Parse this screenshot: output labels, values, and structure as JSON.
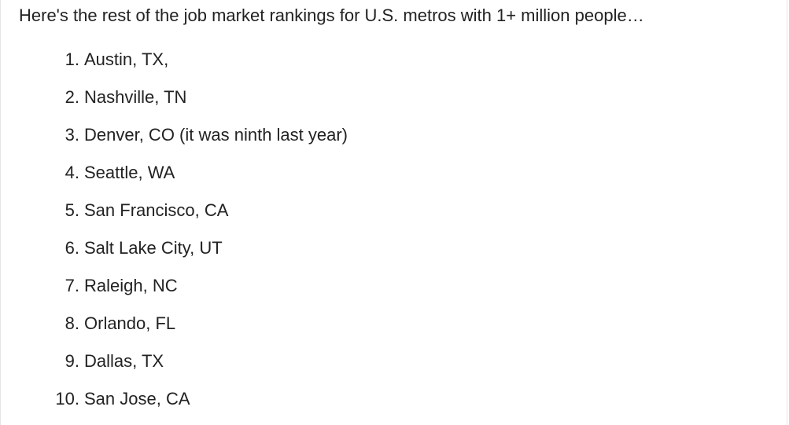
{
  "intro_text": "Here's the rest of the job market rankings for U.S. metros with 1+ million people…",
  "rankings": [
    {
      "number": "1.",
      "text": "Austin, TX,"
    },
    {
      "number": "2.",
      "text": "Nashville, TN"
    },
    {
      "number": "3.",
      "text": "Denver, CO (it was ninth last year)"
    },
    {
      "number": "4.",
      "text": "Seattle, WA"
    },
    {
      "number": "5.",
      "text": "San Francisco, CA"
    },
    {
      "number": "6.",
      "text": "Salt Lake City, UT"
    },
    {
      "number": "7.",
      "text": "Raleigh, NC"
    },
    {
      "number": "8.",
      "text": "Orlando, FL"
    },
    {
      "number": "9.",
      "text": "Dallas, TX"
    },
    {
      "number": "10.",
      "text": "San Jose, CA"
    }
  ]
}
